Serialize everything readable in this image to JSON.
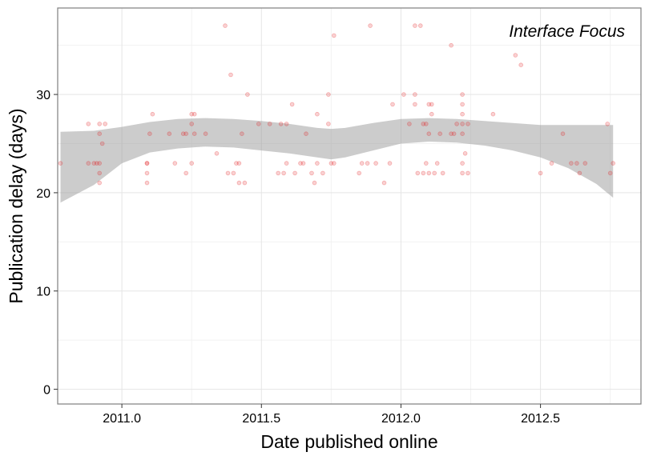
{
  "chart_data": {
    "type": "scatter",
    "title": "",
    "annotation": "Interface Focus",
    "xlabel": "Date published online",
    "ylabel": "Publication delay (days)",
    "xlim": [
      2010.77,
      2012.86
    ],
    "ylim": [
      -1.5,
      38.8
    ],
    "x_ticks": [
      2011.0,
      2011.5,
      2012.0,
      2012.5
    ],
    "x_tick_labels": [
      "2011.0",
      "2011.5",
      "2012.0",
      "2012.5"
    ],
    "y_ticks": [
      0,
      10,
      20,
      30
    ],
    "y_tick_labels": [
      "0",
      "10",
      "20",
      "30"
    ],
    "grid": true,
    "legend": "none",
    "point_color": "#e31a1c",
    "point_alpha": 0.2,
    "band_color": "#999999",
    "points": [
      [
        2010.78,
        23
      ],
      [
        2010.88,
        27
      ],
      [
        2010.88,
        23
      ],
      [
        2010.9,
        23
      ],
      [
        2010.91,
        23
      ],
      [
        2010.92,
        27
      ],
      [
        2010.92,
        23
      ],
      [
        2010.92,
        26
      ],
      [
        2010.92,
        22
      ],
      [
        2010.92,
        21
      ],
      [
        2010.93,
        25
      ],
      [
        2010.94,
        27
      ],
      [
        2011.09,
        23
      ],
      [
        2011.09,
        23
      ],
      [
        2011.09,
        22
      ],
      [
        2011.09,
        21
      ],
      [
        2011.1,
        26
      ],
      [
        2011.11,
        28
      ],
      [
        2011.17,
        26
      ],
      [
        2011.19,
        23
      ],
      [
        2011.22,
        26
      ],
      [
        2011.23,
        22
      ],
      [
        2011.23,
        26
      ],
      [
        2011.25,
        23
      ],
      [
        2011.25,
        27
      ],
      [
        2011.25,
        28
      ],
      [
        2011.26,
        28
      ],
      [
        2011.26,
        26
      ],
      [
        2011.3,
        26
      ],
      [
        2011.34,
        24
      ],
      [
        2011.37,
        37
      ],
      [
        2011.38,
        22
      ],
      [
        2011.39,
        32
      ],
      [
        2011.4,
        22
      ],
      [
        2011.41,
        23
      ],
      [
        2011.42,
        21
      ],
      [
        2011.42,
        23
      ],
      [
        2011.43,
        26
      ],
      [
        2011.44,
        21
      ],
      [
        2011.45,
        30
      ],
      [
        2011.49,
        27
      ],
      [
        2011.53,
        27
      ],
      [
        2011.56,
        22
      ],
      [
        2011.57,
        27
      ],
      [
        2011.58,
        22
      ],
      [
        2011.59,
        27
      ],
      [
        2011.59,
        23
      ],
      [
        2011.61,
        29
      ],
      [
        2011.62,
        22
      ],
      [
        2011.64,
        23
      ],
      [
        2011.65,
        23
      ],
      [
        2011.66,
        26
      ],
      [
        2011.68,
        22
      ],
      [
        2011.69,
        21
      ],
      [
        2011.7,
        23
      ],
      [
        2011.7,
        28
      ],
      [
        2011.72,
        22
      ],
      [
        2011.74,
        30
      ],
      [
        2011.74,
        27
      ],
      [
        2011.75,
        23
      ],
      [
        2011.76,
        23
      ],
      [
        2011.76,
        36
      ],
      [
        2011.85,
        22
      ],
      [
        2011.86,
        23
      ],
      [
        2011.88,
        23
      ],
      [
        2011.89,
        37
      ],
      [
        2011.91,
        23
      ],
      [
        2011.94,
        21
      ],
      [
        2011.96,
        23
      ],
      [
        2011.97,
        29
      ],
      [
        2012.01,
        30
      ],
      [
        2012.03,
        27
      ],
      [
        2012.05,
        30
      ],
      [
        2012.05,
        37
      ],
      [
        2012.05,
        29
      ],
      [
        2012.06,
        22
      ],
      [
        2012.07,
        37
      ],
      [
        2012.08,
        22
      ],
      [
        2012.08,
        27
      ],
      [
        2012.09,
        27
      ],
      [
        2012.09,
        23
      ],
      [
        2012.1,
        22
      ],
      [
        2012.1,
        26
      ],
      [
        2012.1,
        29
      ],
      [
        2012.11,
        28
      ],
      [
        2012.11,
        29
      ],
      [
        2012.12,
        22
      ],
      [
        2012.13,
        23
      ],
      [
        2012.14,
        26
      ],
      [
        2012.15,
        22
      ],
      [
        2012.18,
        35
      ],
      [
        2012.18,
        26
      ],
      [
        2012.19,
        26
      ],
      [
        2012.2,
        27
      ],
      [
        2012.22,
        30
      ],
      [
        2012.22,
        29
      ],
      [
        2012.22,
        28
      ],
      [
        2012.22,
        27
      ],
      [
        2012.22,
        26
      ],
      [
        2012.22,
        23
      ],
      [
        2012.22,
        22
      ],
      [
        2012.23,
        24
      ],
      [
        2012.24,
        22
      ],
      [
        2012.24,
        27
      ],
      [
        2012.33,
        28
      ],
      [
        2012.41,
        34
      ],
      [
        2012.43,
        33
      ],
      [
        2012.5,
        22
      ],
      [
        2012.54,
        23
      ],
      [
        2012.58,
        26
      ],
      [
        2012.61,
        23
      ],
      [
        2012.63,
        23
      ],
      [
        2012.64,
        22
      ],
      [
        2012.66,
        23
      ],
      [
        2012.74,
        27
      ],
      [
        2012.75,
        22
      ],
      [
        2012.76,
        23
      ]
    ],
    "smooth_band": {
      "x": [
        2010.78,
        2010.9,
        2011.0,
        2011.1,
        2011.2,
        2011.3,
        2011.4,
        2011.5,
        2011.6,
        2011.7,
        2011.75,
        2011.8,
        2011.9,
        2012.0,
        2012.1,
        2012.2,
        2012.3,
        2012.4,
        2012.5,
        2012.6,
        2012.7,
        2012.76
      ],
      "upper": [
        26.2,
        26.3,
        26.7,
        27.2,
        27.5,
        27.6,
        27.5,
        27.3,
        27.0,
        26.6,
        26.5,
        26.6,
        27.1,
        27.5,
        27.6,
        27.5,
        27.3,
        27.1,
        26.9,
        26.9,
        26.9,
        26.9
      ],
      "lower": [
        19.0,
        20.8,
        23.0,
        24.1,
        24.5,
        24.7,
        24.6,
        24.3,
        24.0,
        23.6,
        23.4,
        23.6,
        24.3,
        25.0,
        25.2,
        25.1,
        24.8,
        24.3,
        23.6,
        22.5,
        20.9,
        19.5
      ]
    }
  }
}
